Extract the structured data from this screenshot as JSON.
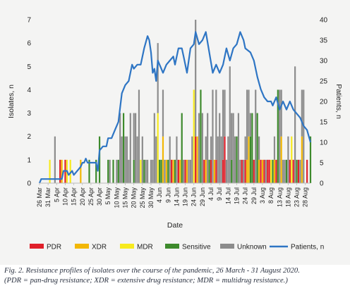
{
  "chart_data": {
    "type": "bar",
    "xlabel": "Date",
    "ylabel_left": "Isolates, n",
    "ylabel_right": "Patients, n",
    "ylim_left": [
      0,
      7
    ],
    "yticks_left": [
      "0",
      "1",
      "2",
      "3",
      "4",
      "5",
      "6",
      "7"
    ],
    "ylim_right": [
      0,
      40
    ],
    "yticks_right": [
      "0",
      "5",
      "10",
      "15",
      "20",
      "25",
      "30",
      "35",
      "40"
    ],
    "x_start": "2020-03-26",
    "x_end": "2020-08-31",
    "tick_labels": [
      "26 Mar",
      "31 Mar",
      "5 Apr",
      "10 Apr",
      "15 Apr",
      "20 Apr",
      "25 Apr",
      "30 Apr",
      "5 May",
      "10 May",
      "15 May",
      "20 May",
      "25 May",
      "30 May",
      "4 Jun",
      "9 Jun",
      "14 Jun",
      "19 Jun",
      "24 Jun",
      "29 Jun",
      "4 Jul",
      "9 Jul",
      "14 Jul",
      "19 Jul",
      "24 Jul",
      "29 Jul",
      "3 Aug",
      "8 Aug",
      "13 Aug",
      "18 Aug",
      "23 Aug",
      "28 Aug"
    ],
    "legend": [
      {
        "name": "PDR",
        "color": "#e0202a",
        "kind": "bar"
      },
      {
        "name": "XDR",
        "color": "#f2b705",
        "kind": "bar"
      },
      {
        "name": "MDR",
        "color": "#f7ea1e",
        "kind": "bar"
      },
      {
        "name": "Sensitive",
        "color": "#3d8a2c",
        "kind": "bar"
      },
      {
        "name": "Unknown",
        "color": "#8c8c8c",
        "kind": "bar"
      },
      {
        "name": "Patients, n",
        "color": "#2e75c4",
        "kind": "line"
      }
    ],
    "series_line": {
      "name": "Patients, n",
      "points": [
        [
          "2020-03-26",
          0
        ],
        [
          "2020-03-27",
          1
        ],
        [
          "2020-04-01",
          1
        ],
        [
          "2020-04-03",
          1
        ],
        [
          "2020-04-04",
          1
        ],
        [
          "2020-04-06",
          1
        ],
        [
          "2020-04-08",
          1
        ],
        [
          "2020-04-09",
          3
        ],
        [
          "2020-04-11",
          3
        ],
        [
          "2020-04-12",
          2
        ],
        [
          "2020-04-14",
          3
        ],
        [
          "2020-04-15",
          2
        ],
        [
          "2020-04-17",
          3
        ],
        [
          "2020-04-19",
          4
        ],
        [
          "2020-04-20",
          5
        ],
        [
          "2020-04-21",
          5
        ],
        [
          "2020-04-22",
          6
        ],
        [
          "2020-04-23",
          5
        ],
        [
          "2020-04-25",
          5
        ],
        [
          "2020-04-27",
          5
        ],
        [
          "2020-04-28",
          5
        ],
        [
          "2020-04-29",
          3
        ],
        [
          "2020-04-30",
          8
        ],
        [
          "2020-05-02",
          9
        ],
        [
          "2020-05-04",
          9
        ],
        [
          "2020-05-05",
          11
        ],
        [
          "2020-05-07",
          11
        ],
        [
          "2020-05-09",
          13
        ],
        [
          "2020-05-11",
          15
        ],
        [
          "2020-05-13",
          22
        ],
        [
          "2020-05-15",
          24
        ],
        [
          "2020-05-17",
          25
        ],
        [
          "2020-05-19",
          29
        ],
        [
          "2020-05-20",
          28
        ],
        [
          "2020-05-22",
          29
        ],
        [
          "2020-05-24",
          29
        ],
        [
          "2020-05-26",
          33
        ],
        [
          "2020-05-28",
          36
        ],
        [
          "2020-05-29",
          35
        ],
        [
          "2020-05-30",
          32
        ],
        [
          "2020-05-31",
          27
        ],
        [
          "2020-06-01",
          28
        ],
        [
          "2020-06-02",
          25
        ],
        [
          "2020-06-03",
          30
        ],
        [
          "2020-06-05",
          28
        ],
        [
          "2020-06-06",
          27
        ],
        [
          "2020-06-08",
          29
        ],
        [
          "2020-06-10",
          30
        ],
        [
          "2020-06-12",
          31
        ],
        [
          "2020-06-13",
          29
        ],
        [
          "2020-06-15",
          33
        ],
        [
          "2020-06-17",
          33
        ],
        [
          "2020-06-18",
          31
        ],
        [
          "2020-06-20",
          27
        ],
        [
          "2020-06-22",
          33
        ],
        [
          "2020-06-24",
          34
        ],
        [
          "2020-06-25",
          37
        ],
        [
          "2020-06-27",
          34
        ],
        [
          "2020-06-29",
          35
        ],
        [
          "2020-07-01",
          37
        ],
        [
          "2020-07-03",
          32
        ],
        [
          "2020-07-05",
          27
        ],
        [
          "2020-07-07",
          29
        ],
        [
          "2020-07-09",
          27
        ],
        [
          "2020-07-11",
          29
        ],
        [
          "2020-07-13",
          33
        ],
        [
          "2020-07-15",
          30
        ],
        [
          "2020-07-17",
          33
        ],
        [
          "2020-07-19",
          34
        ],
        [
          "2020-07-21",
          37
        ],
        [
          "2020-07-23",
          35
        ],
        [
          "2020-07-24",
          33
        ],
        [
          "2020-07-27",
          32
        ],
        [
          "2020-07-29",
          30
        ],
        [
          "2020-07-31",
          26
        ],
        [
          "2020-08-02",
          23
        ],
        [
          "2020-08-04",
          21
        ],
        [
          "2020-08-06",
          20
        ],
        [
          "2020-08-08",
          20
        ],
        [
          "2020-08-09",
          19
        ],
        [
          "2020-08-11",
          21
        ],
        [
          "2020-08-13",
          18
        ],
        [
          "2020-08-15",
          20
        ],
        [
          "2020-08-17",
          18
        ],
        [
          "2020-08-19",
          20
        ],
        [
          "2020-08-21",
          18
        ],
        [
          "2020-08-23",
          17
        ],
        [
          "2020-08-25",
          16
        ],
        [
          "2020-08-27",
          14
        ],
        [
          "2020-08-29",
          13
        ],
        [
          "2020-08-31",
          10
        ]
      ]
    },
    "bars": [
      {
        "date": "2020-04-01",
        "MDR": 1
      },
      {
        "date": "2020-04-04",
        "Unknown": 2
      },
      {
        "date": "2020-04-07",
        "PDR": 1
      },
      {
        "date": "2020-04-08",
        "XDR": 1
      },
      {
        "date": "2020-04-10",
        "PDR": 1
      },
      {
        "date": "2020-04-11",
        "MDR": 1
      },
      {
        "date": "2020-04-13",
        "MDR": 1
      },
      {
        "date": "2020-04-19",
        "XDR": 1
      },
      {
        "date": "2020-04-24",
        "Sensitive": 1
      },
      {
        "date": "2020-04-28",
        "Sensitive": 1
      },
      {
        "date": "2020-04-30",
        "Sensitive": 2
      },
      {
        "date": "2020-05-05",
        "Sensitive": 1
      },
      {
        "date": "2020-05-06",
        "Unknown": 1
      },
      {
        "date": "2020-05-08",
        "Sensitive": 1
      },
      {
        "date": "2020-05-10",
        "Unknown": 1
      },
      {
        "date": "2020-05-11",
        "Sensitive": 1
      },
      {
        "date": "2020-05-12",
        "Unknown": 3
      },
      {
        "date": "2020-05-13",
        "Unknown": 2
      },
      {
        "date": "2020-05-14",
        "Sensitive": 3
      },
      {
        "date": "2020-05-15",
        "Unknown": 2
      },
      {
        "date": "2020-05-16",
        "Unknown": 2
      },
      {
        "date": "2020-05-17",
        "Unknown": 1
      },
      {
        "date": "2020-05-18",
        "Unknown": 3
      },
      {
        "date": "2020-05-20",
        "Sensitive": 1,
        "Unknown": 2
      },
      {
        "date": "2020-05-21",
        "Unknown": 3
      },
      {
        "date": "2020-05-22",
        "Unknown": 2
      },
      {
        "date": "2020-05-23",
        "Unknown": 4
      },
      {
        "date": "2020-05-24",
        "MDR": 1
      },
      {
        "date": "2020-05-25",
        "Unknown": 2
      },
      {
        "date": "2020-05-26",
        "Sensitive": 1
      },
      {
        "date": "2020-05-27",
        "Unknown": 1
      },
      {
        "date": "2020-05-28",
        "Unknown": 1
      },
      {
        "date": "2020-05-30",
        "Unknown": 1
      },
      {
        "date": "2020-05-31",
        "Unknown": 1
      },
      {
        "date": "2020-06-01",
        "Unknown": 3
      },
      {
        "date": "2020-06-02",
        "Unknown": 2
      },
      {
        "date": "2020-06-03",
        "MDR": 3,
        "Unknown": 3
      },
      {
        "date": "2020-06-04",
        "Sensitive": 1
      },
      {
        "date": "2020-06-05",
        "Sensitive": 1
      },
      {
        "date": "2020-06-06",
        "XDR": 2,
        "Unknown": 2
      },
      {
        "date": "2020-06-07",
        "Unknown": 1
      },
      {
        "date": "2020-06-08",
        "XDR": 1
      },
      {
        "date": "2020-06-09",
        "Sensitive": 1
      },
      {
        "date": "2020-06-10",
        "Unknown": 2
      },
      {
        "date": "2020-06-11",
        "PDR": 1
      },
      {
        "date": "2020-06-12",
        "XDR": 1
      },
      {
        "date": "2020-06-13",
        "Sensitive": 1
      },
      {
        "date": "2020-06-14",
        "Unknown": 2
      },
      {
        "date": "2020-06-15",
        "PDR": 1
      },
      {
        "date": "2020-06-16",
        "XDR": 1
      },
      {
        "date": "2020-06-17",
        "Sensitive": 3
      },
      {
        "date": "2020-06-18",
        "Unknown": 1
      },
      {
        "date": "2020-06-19",
        "PDR": 1
      },
      {
        "date": "2020-06-20",
        "XDR": 1
      },
      {
        "date": "2020-06-21",
        "Unknown": 1
      },
      {
        "date": "2020-06-22",
        "Unknown": 1
      },
      {
        "date": "2020-06-23",
        "Unknown": 2
      },
      {
        "date": "2020-06-24",
        "MDR": 4
      },
      {
        "date": "2020-06-25",
        "PDR": 2,
        "Unknown": 5
      },
      {
        "date": "2020-06-26",
        "XDR": 2
      },
      {
        "date": "2020-06-27",
        "Unknown": 3
      },
      {
        "date": "2020-06-28",
        "Sensitive": 4
      },
      {
        "date": "2020-06-29",
        "Unknown": 3
      },
      {
        "date": "2020-06-30",
        "PDR": 1
      },
      {
        "date": "2020-07-01",
        "XDR": 1,
        "Unknown": 1
      },
      {
        "date": "2020-07-02",
        "Unknown": 3
      },
      {
        "date": "2020-07-03",
        "Sensitive": 1
      },
      {
        "date": "2020-07-04",
        "PDR": 1,
        "Unknown": 1
      },
      {
        "date": "2020-07-05",
        "Unknown": 4
      },
      {
        "date": "2020-07-06",
        "XDR": 1
      },
      {
        "date": "2020-07-07",
        "PDR": 1,
        "Unknown": 3
      },
      {
        "date": "2020-07-08",
        "Unknown": 2
      },
      {
        "date": "2020-07-09",
        "Unknown": 3
      },
      {
        "date": "2020-07-10",
        "Unknown": 2
      },
      {
        "date": "2020-07-11",
        "PDR": 1,
        "Unknown": 3
      },
      {
        "date": "2020-07-12",
        "PDR": 2,
        "Unknown": 2
      },
      {
        "date": "2020-07-13",
        "Unknown": 1
      },
      {
        "date": "2020-07-14",
        "Unknown": 2
      },
      {
        "date": "2020-07-15",
        "Unknown": 5
      },
      {
        "date": "2020-07-16",
        "Sensitive": 1,
        "Unknown": 2
      },
      {
        "date": "2020-07-17",
        "Unknown": 3
      },
      {
        "date": "2020-07-18",
        "Unknown": 2
      },
      {
        "date": "2020-07-19",
        "Sensitive": 2
      },
      {
        "date": "2020-07-20",
        "Unknown": 3
      },
      {
        "date": "2020-07-21",
        "Unknown": 1
      },
      {
        "date": "2020-07-22",
        "PDR": 1
      },
      {
        "date": "2020-07-23",
        "Unknown": 1
      },
      {
        "date": "2020-07-24",
        "PDR": 1,
        "Unknown": 1
      },
      {
        "date": "2020-07-25",
        "XDR": 1,
        "Unknown": 3
      },
      {
        "date": "2020-07-26",
        "XDR": 2,
        "Unknown": 2
      },
      {
        "date": "2020-07-27",
        "Sensitive": 2,
        "Unknown": 1
      },
      {
        "date": "2020-07-28",
        "Sensitive": 3
      },
      {
        "date": "2020-07-29",
        "PDR": 1
      },
      {
        "date": "2020-07-30",
        "Unknown": 4
      },
      {
        "date": "2020-07-31",
        "Sensitive": 3
      },
      {
        "date": "2020-08-01",
        "XDR": 1,
        "Unknown": 1
      },
      {
        "date": "2020-08-02",
        "PDR": 1
      },
      {
        "date": "2020-08-03",
        "XDR": 1
      },
      {
        "date": "2020-08-04",
        "PDR": 1
      },
      {
        "date": "2020-08-05",
        "Unknown": 1
      },
      {
        "date": "2020-08-06",
        "PDR": 1
      },
      {
        "date": "2020-08-07",
        "PDR": 1
      },
      {
        "date": "2020-08-08",
        "MDR": 1
      },
      {
        "date": "2020-08-09",
        "Sensitive": 1
      },
      {
        "date": "2020-08-10",
        "XDR": 1,
        "Unknown": 1
      },
      {
        "date": "2020-08-11",
        "PDR": 1
      },
      {
        "date": "2020-08-12",
        "Sensitive": 4
      },
      {
        "date": "2020-08-13",
        "Unknown": 4
      },
      {
        "date": "2020-08-14",
        "XDR": 2,
        "Unknown": 2
      },
      {
        "date": "2020-08-15",
        "Unknown": 1
      },
      {
        "date": "2020-08-16",
        "Unknown": 1
      },
      {
        "date": "2020-08-17",
        "Sensitive": 1
      },
      {
        "date": "2020-08-18",
        "Unknown": 2
      },
      {
        "date": "2020-08-19",
        "PDR": 1
      },
      {
        "date": "2020-08-20",
        "MDR": 2
      },
      {
        "date": "2020-08-21",
        "PDR": 1
      },
      {
        "date": "2020-08-22",
        "Unknown": 5
      },
      {
        "date": "2020-08-23",
        "Sensitive": 1
      },
      {
        "date": "2020-08-24",
        "PDR": 1
      },
      {
        "date": "2020-08-25",
        "Unknown": 1
      },
      {
        "date": "2020-08-26",
        "XDR": 2,
        "Unknown": 2
      },
      {
        "date": "2020-08-27",
        "Unknown": 4
      },
      {
        "date": "2020-08-29",
        "PDR": 1
      },
      {
        "date": "2020-08-31",
        "Sensitive": 2
      }
    ]
  },
  "caption": {
    "line1": "Fig. 2. Resistance profiles of isolates over the course of the pandemic, 26 March - 31 August 2020.",
    "line2": "(PDR = pan-drug resistance; XDR = extensive drug resistance; MDR = multidrug resistance.)"
  }
}
